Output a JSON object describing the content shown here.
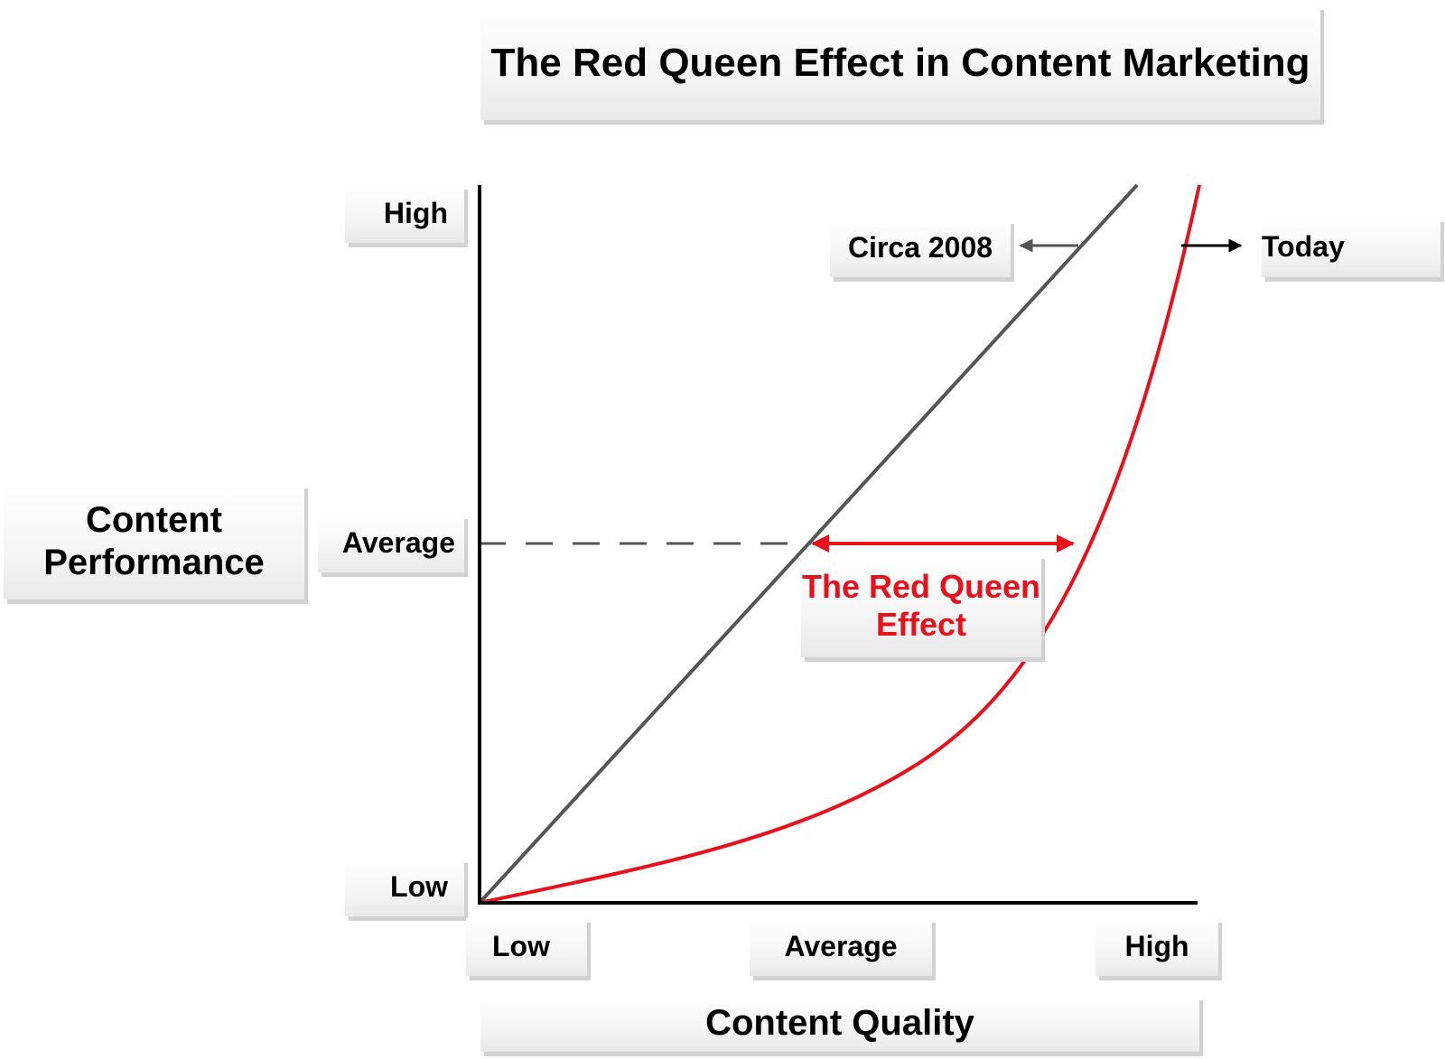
{
  "title": "The Red Queen Effect in Content Marketing",
  "y_axis": {
    "label": "Content Performance",
    "ticks": {
      "high": "High",
      "average": "Average",
      "low": "Low"
    }
  },
  "x_axis": {
    "label": "Content Quality",
    "ticks": {
      "low": "Low",
      "average": "Average",
      "high": "High"
    }
  },
  "curves": {
    "circa_2008": {
      "label": "Circa 2008",
      "color": "#555555",
      "shape": "linear"
    },
    "today": {
      "label": "Today",
      "color": "#e8101a",
      "shape": "convex-exponential"
    }
  },
  "gap_annotation": {
    "label": "The Red Queen Effect",
    "color": "#e8101a"
  },
  "colors": {
    "axis": "#000000",
    "dashed_reference": "#555555",
    "accent": "#e8101a"
  }
}
